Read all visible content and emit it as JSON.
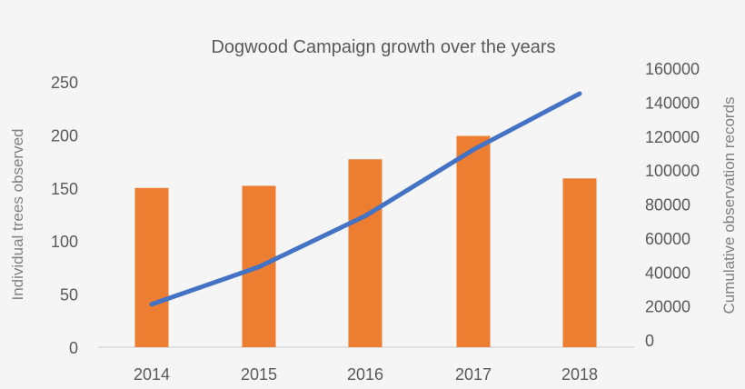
{
  "chart_data": {
    "type": "bar+line",
    "title": "Dogwood Campaign growth over the years",
    "categories": [
      "2014",
      "2015",
      "2016",
      "2017",
      "2018"
    ],
    "series": [
      {
        "name": "Individual trees observed",
        "type": "bar",
        "axis": "left",
        "color": "#ED7D31",
        "values": [
          150,
          152,
          177,
          199,
          159
        ]
      },
      {
        "name": "Cumulative observation records",
        "type": "line",
        "axis": "right",
        "color": "#4472C4",
        "values": [
          21000,
          43000,
          73000,
          112000,
          145000
        ]
      }
    ],
    "xlabel": "",
    "ylabel": "Individual trees observed",
    "y2label": "Cumulative observation records",
    "ylim": [
      0,
      250
    ],
    "y2lim": [
      0,
      160000
    ],
    "yticks": [
      "0",
      "50",
      "100",
      "150",
      "200",
      "250"
    ],
    "y2ticks": [
      "0",
      "20000",
      "40000",
      "60000",
      "80000",
      "100000",
      "120000",
      "140000",
      "160000"
    ],
    "grid": false,
    "legend": "none"
  }
}
